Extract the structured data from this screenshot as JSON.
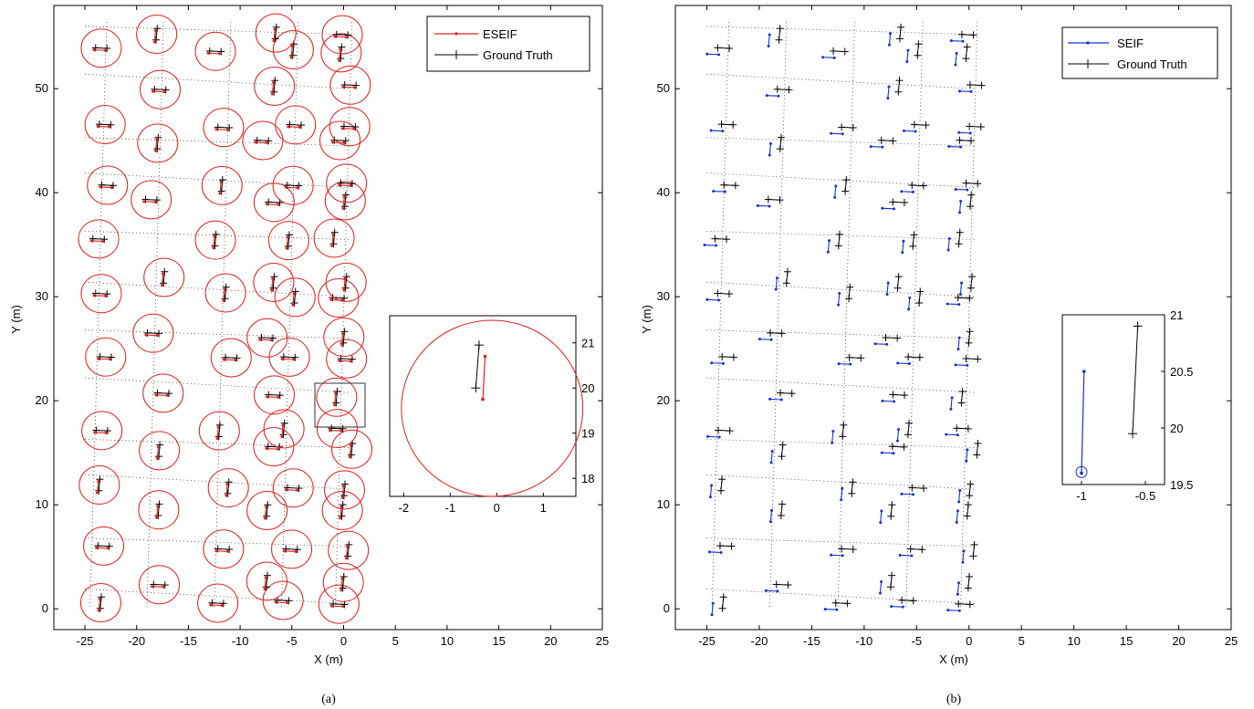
{
  "captions": {
    "a": "(a)",
    "b": "(b)"
  },
  "colors": {
    "estimate_a": "#e02020",
    "estimate_b": "#1a2fd6",
    "truth": "#000000",
    "grid_dots": "#444444"
  },
  "chart_data": [
    {
      "type": "scatter",
      "caption": "(a)",
      "xlabel": "X (m)",
      "ylabel": "Y (m)",
      "xlim": [
        -28,
        25
      ],
      "ylim": [
        -2,
        58
      ],
      "xticks": [
        "-25",
        "-20",
        "-15",
        "-10",
        "-5",
        "0",
        "5",
        "10",
        "15",
        "20",
        "25"
      ],
      "yticks": [
        "0",
        "10",
        "20",
        "30",
        "40",
        "50"
      ],
      "legend": {
        "position": "top-right",
        "entries": [
          "ESEIF",
          "Ground Truth"
        ]
      },
      "uncertainty_ellipses": true,
      "inset": {
        "xlim": [
          -2.3,
          1.7
        ],
        "ylim": [
          17.6,
          21.6
        ],
        "xticks": [
          "-2",
          "-1",
          "0",
          "1"
        ],
        "yticks": [
          "18",
          "19",
          "20",
          "21"
        ],
        "truth_segment": [
          [
            -0.45,
            20.0
          ],
          [
            -0.38,
            20.95
          ]
        ],
        "estimate_segment": [
          [
            -0.3,
            19.75
          ],
          [
            -0.25,
            20.7
          ]
        ],
        "ellipse": {
          "cx": -0.1,
          "cy": 19.55,
          "rx": 1.95,
          "ry": 1.95
        }
      }
    },
    {
      "type": "scatter",
      "caption": "(b)",
      "xlabel": "X (m)",
      "ylabel": "Y (m)",
      "xlim": [
        -28,
        25
      ],
      "ylim": [
        -2,
        58
      ],
      "xticks": [
        "-25",
        "-20",
        "-15",
        "-10",
        "-5",
        "0",
        "5",
        "10",
        "15",
        "20",
        "25"
      ],
      "yticks": [
        "0",
        "10",
        "20",
        "30",
        "40",
        "50"
      ],
      "legend": {
        "position": "top-right",
        "entries": [
          "SEIF",
          "Ground Truth"
        ]
      },
      "uncertainty_ellipses": false,
      "inset": {
        "xlim": [
          -1.15,
          -0.35
        ],
        "ylim": [
          19.5,
          21.0
        ],
        "xticks": [
          "-1",
          "-0.5"
        ],
        "yticks": [
          "19.5",
          "20",
          "20.5",
          "21"
        ],
        "truth_segment": [
          [
            -0.6,
            19.95
          ],
          [
            -0.56,
            20.9
          ]
        ],
        "estimate_segment": [
          [
            -1.0,
            19.6
          ],
          [
            -0.98,
            20.5
          ]
        ],
        "ellipse": {
          "cx": -1.0,
          "cy": 19.61,
          "rx": 0.02,
          "ry": 0.035
        }
      }
    }
  ]
}
